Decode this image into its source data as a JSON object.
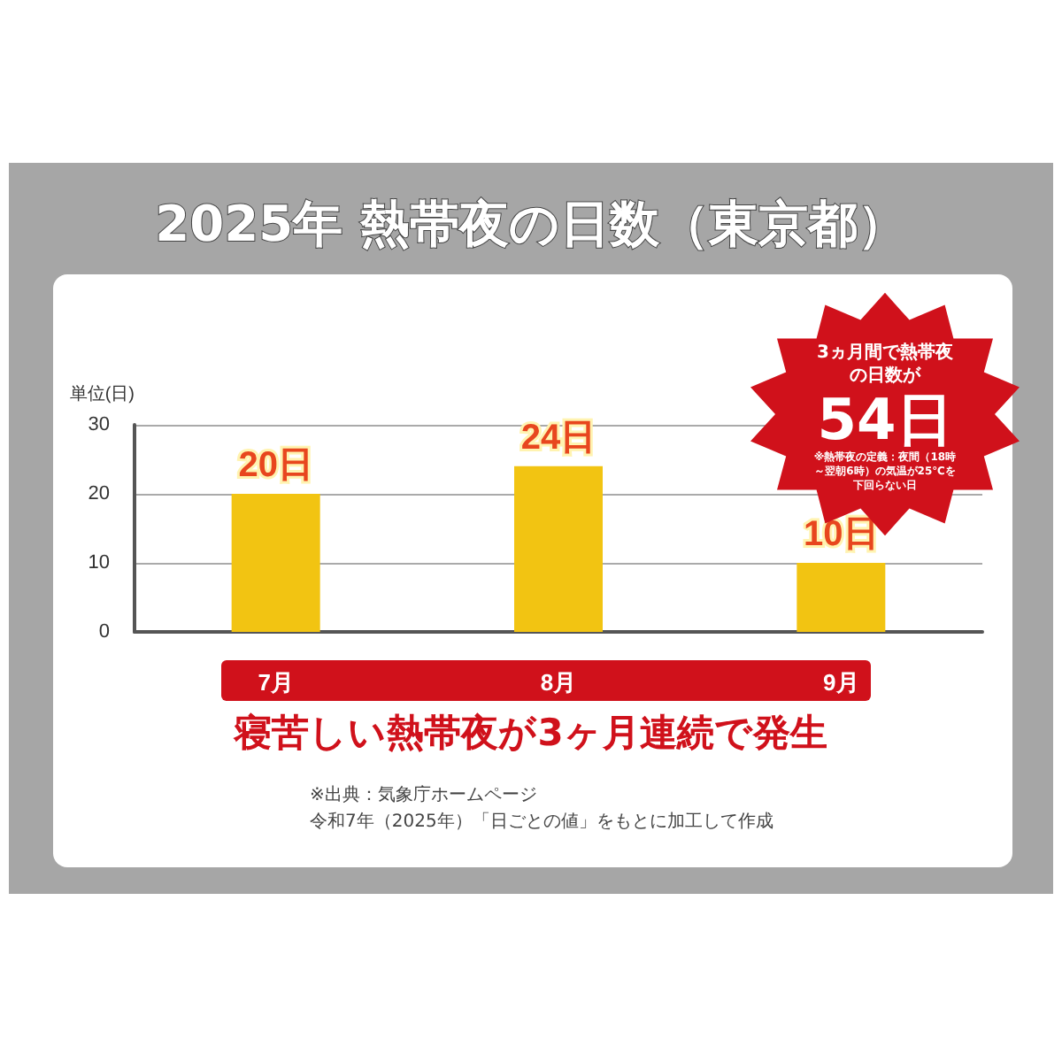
{
  "chart_data": {
    "type": "bar",
    "title": "2025年 熱帯夜の日数（東京都）",
    "subtitle": "寝苦しい熱帯夜が3ヶ月連続で発生",
    "ylabel": "単位(日)",
    "categories": [
      "7月",
      "8月",
      "9月"
    ],
    "series": [
      {
        "color": "#f2c412",
        "values": [
          20,
          24,
          10
        ],
        "value_labels": [
          "20日",
          "24日",
          "10日"
        ]
      }
    ],
    "ylim": [
      0,
      30
    ],
    "yticks": [
      0,
      10,
      20,
      30
    ],
    "grid": "y",
    "annotations": [
      "3ヵ月間で熱帯夜の日数が",
      "54日",
      "※熱帯夜の定義：夜間（18時～翌朝6時）の気温が25℃を下回らない日",
      "※出典：気象庁ホームページ",
      "令和7年（2025年）「日ごとの値」をもとに加工して作成"
    ]
  }
}
